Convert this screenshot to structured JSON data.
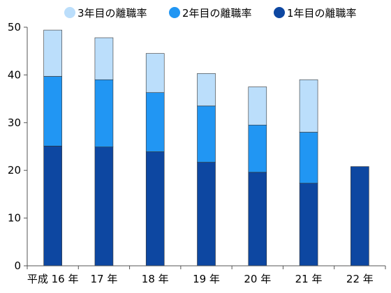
{
  "chart_data": {
    "type": "bar",
    "stacked": true,
    "categories": [
      "平成 16 年",
      "17 年",
      "18 年",
      "19 年",
      "20 年",
      "21 年",
      "22 年"
    ],
    "series": [
      {
        "name": "1年目の離職率",
        "color": "#0d47a1",
        "values": [
          25.1,
          24.9,
          23.9,
          21.7,
          19.6,
          17.3,
          20.8
        ]
      },
      {
        "name": "2年目の離職率",
        "color": "#2196f3",
        "values": [
          14.6,
          14.1,
          12.4,
          11.8,
          9.9,
          10.7,
          0
        ]
      },
      {
        "name": "3年目の離職率",
        "color": "#bbdefb",
        "values": [
          9.7,
          8.8,
          8.2,
          6.8,
          8.0,
          11.0,
          0
        ]
      }
    ],
    "yticks": [
      "0",
      "10",
      "20",
      "30",
      "40",
      "50"
    ],
    "ylim": [
      0,
      50
    ],
    "grid": false,
    "legend_position": "top-right",
    "legend_order": [
      "3年目の離職率",
      "2年目の離職率",
      "1年目の離職率"
    ]
  }
}
